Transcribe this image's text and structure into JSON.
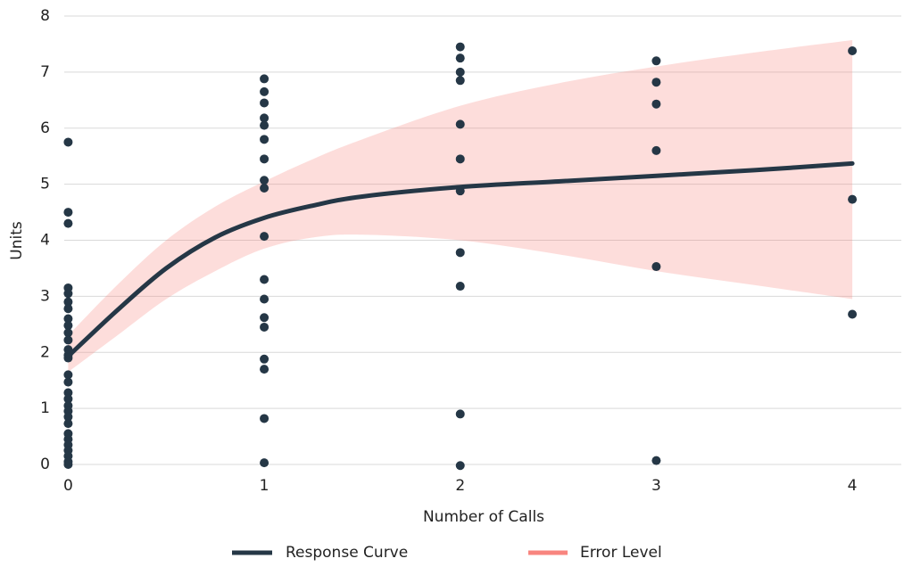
{
  "chart_data": {
    "type": "scatter",
    "x_label": "Number of Calls",
    "y_label": "Units",
    "xlim": [
      -0.02,
      4.25
    ],
    "ylim": [
      0,
      8
    ],
    "xticks": [
      0,
      1,
      2,
      3,
      4
    ],
    "yticks": [
      0,
      1,
      2,
      3,
      4,
      5,
      6,
      7,
      8
    ],
    "grid": true,
    "legend": "bottom",
    "points": {
      "color": "#253746",
      "x": [
        0,
        0,
        0,
        0,
        0,
        0,
        0,
        0,
        0,
        0,
        0,
        0,
        0,
        0,
        0,
        0,
        0,
        0,
        0,
        0,
        0,
        0,
        0,
        0,
        0,
        0,
        0,
        0,
        0,
        1,
        1,
        1,
        1,
        1,
        1,
        1,
        1,
        1,
        1,
        1,
        1,
        1,
        1,
        1,
        1,
        1,
        1,
        2,
        2,
        2,
        2,
        2,
        2,
        2,
        2,
        2,
        2,
        2,
        3,
        3,
        3,
        3,
        3,
        3,
        4,
        4,
        4
      ],
      "y": [
        5.75,
        4.5,
        4.3,
        3.15,
        3.05,
        2.9,
        2.78,
        2.6,
        2.48,
        2.35,
        2.22,
        2.05,
        1.95,
        1.9,
        1.6,
        1.47,
        1.28,
        1.17,
        1.05,
        0.95,
        0.85,
        0.73,
        0.55,
        0.45,
        0.35,
        0.25,
        0.15,
        0.05,
        0,
        6.88,
        6.65,
        6.45,
        6.18,
        6.05,
        5.8,
        5.45,
        5.07,
        4.93,
        4.07,
        3.3,
        2.95,
        2.62,
        2.45,
        1.88,
        1.7,
        0.82,
        0.03,
        7.45,
        7.25,
        7.0,
        6.85,
        6.07,
        5.45,
        4.88,
        3.78,
        3.18,
        0.9,
        -0.02,
        7.2,
        6.82,
        6.43,
        5.6,
        3.53,
        0.07,
        7.38,
        4.73,
        2.68
      ]
    },
    "band": {
      "name": "Error Level",
      "color": "#f8857f",
      "x": [
        0,
        0.25,
        0.5,
        0.75,
        1,
        1.25,
        1.5,
        2,
        2.5,
        3,
        3.5,
        4
      ],
      "lower": [
        1.65,
        2.3,
        2.95,
        3.45,
        3.85,
        4.05,
        4.1,
        4.0,
        3.75,
        3.45,
        3.2,
        2.95
      ],
      "upper": [
        2.3,
        3.2,
        4.0,
        4.6,
        5.05,
        5.45,
        5.8,
        6.4,
        6.8,
        7.1,
        7.35,
        7.57
      ]
    },
    "curve": {
      "name": "Response Curve",
      "color": "#253746",
      "x": [
        0,
        0.25,
        0.5,
        0.75,
        1,
        1.25,
        1.5,
        2,
        2.5,
        3,
        3.5,
        4
      ],
      "values": [
        1.93,
        2.75,
        3.5,
        4.05,
        4.4,
        4.62,
        4.78,
        4.95,
        5.05,
        5.15,
        5.25,
        5.37
      ]
    }
  }
}
